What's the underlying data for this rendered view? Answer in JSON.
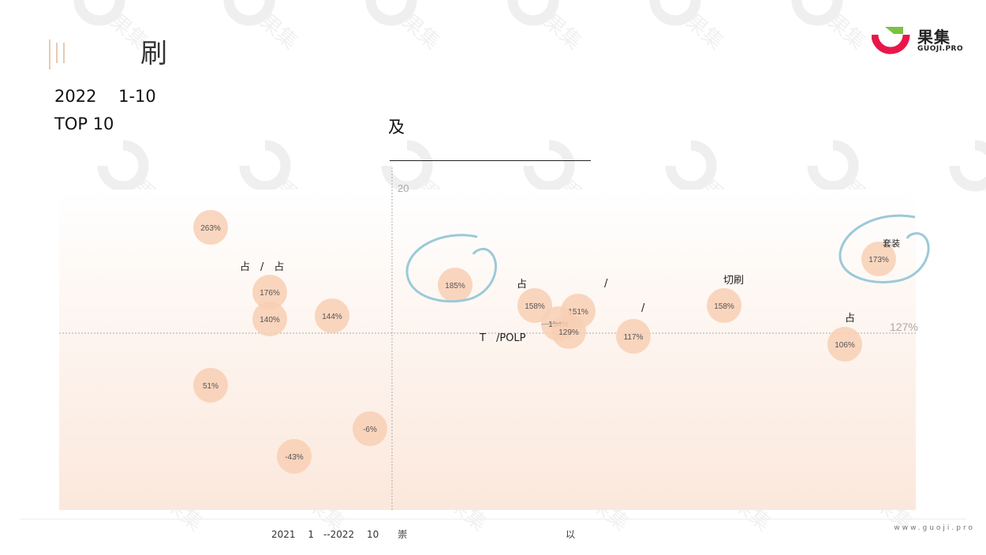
{
  "page": {
    "title": "刷",
    "subtitle_line1": "2022　 1-10",
    "subtitle_line2": "TOP 10",
    "subtitle_mid": "及",
    "footnote_1": "2021　 1　--2022　 10　　崇",
    "footnote_2": "以",
    "url": "www.guoji.pro"
  },
  "logo": {
    "name": "果集",
    "sub": "GUOJI.PRO",
    "colors": {
      "red": "#e8174a",
      "green": "#7cc242"
    }
  },
  "colors": {
    "bubble": "#f8cfb4",
    "bubble_text": "#555555",
    "band_top": "#ffffff",
    "band_bottom": "#fbe8dc",
    "circle_highlight": "#9cc9d8",
    "axis_line": "#aaaaaa",
    "watermark": "#eeeeee"
  },
  "chart_data": {
    "type": "scatter",
    "title": "",
    "xlabel": "",
    "ylabel": "",
    "y_axis_top_label": "20",
    "reference_line": {
      "label": "127%",
      "value": 127
    },
    "grid": false,
    "points": [
      {
        "label": "263%",
        "value": 263
      },
      {
        "label": "176%",
        "value": 176
      },
      {
        "label": "140%",
        "value": 140
      },
      {
        "label": "144%",
        "value": 144
      },
      {
        "label": "51%",
        "value": 51
      },
      {
        "label": "-6%",
        "value": -6
      },
      {
        "label": "-43%",
        "value": -43
      },
      {
        "label": "185%",
        "value": 185,
        "highlighted": true
      },
      {
        "label": "158%",
        "value": 158
      },
      {
        "label": "151%",
        "value": 151
      },
      {
        "label": "134%",
        "value": 134
      },
      {
        "label": "129%",
        "value": 129
      },
      {
        "label": "117%",
        "value": 117
      },
      {
        "label": "158%",
        "value": 158
      },
      {
        "label": "106%",
        "value": 106
      },
      {
        "label": "173%",
        "value": 173,
        "highlighted": true
      }
    ],
    "annotations": [
      {
        "text": "占　/　占"
      },
      {
        "text": "占"
      },
      {
        "text": "/"
      },
      {
        "text": "/"
      },
      {
        "text": "T　/POLP"
      },
      {
        "text": "切刷"
      },
      {
        "text": "占"
      },
      {
        "text": "套装"
      }
    ]
  }
}
